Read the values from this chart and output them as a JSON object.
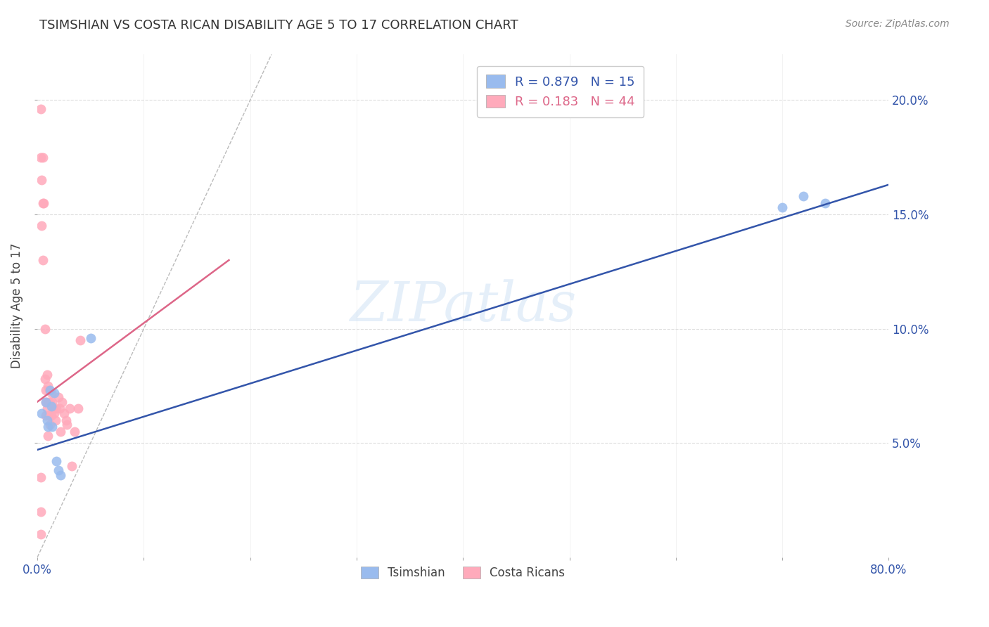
{
  "title": "TSIMSHIAN VS COSTA RICAN DISABILITY AGE 5 TO 17 CORRELATION CHART",
  "source": "Source: ZipAtlas.com",
  "ylabel": "Disability Age 5 to 17",
  "watermark": "ZIPatlas",
  "xlim": [
    0.0,
    0.8
  ],
  "ylim": [
    0.0,
    0.22
  ],
  "xticks": [
    0.0,
    0.1,
    0.2,
    0.3,
    0.4,
    0.5,
    0.6,
    0.7,
    0.8
  ],
  "yticks": [
    0.05,
    0.1,
    0.15,
    0.2
  ],
  "blue_R": 0.879,
  "blue_N": 15,
  "pink_R": 0.183,
  "pink_N": 44,
  "blue_color": "#99BBEE",
  "pink_color": "#FFAABB",
  "blue_line_color": "#3355AA",
  "pink_line_color": "#DD6688",
  "diag_color": "#BBBBBB",
  "background_color": "#FFFFFF",
  "blue_scatter_x": [
    0.004,
    0.008,
    0.009,
    0.01,
    0.012,
    0.013,
    0.014,
    0.016,
    0.018,
    0.02,
    0.022,
    0.05,
    0.7,
    0.72,
    0.74
  ],
  "blue_scatter_y": [
    0.063,
    0.068,
    0.06,
    0.057,
    0.073,
    0.066,
    0.057,
    0.072,
    0.042,
    0.038,
    0.036,
    0.096,
    0.153,
    0.158,
    0.155
  ],
  "pink_scatter_x": [
    0.003,
    0.003,
    0.004,
    0.004,
    0.005,
    0.005,
    0.005,
    0.006,
    0.007,
    0.007,
    0.008,
    0.008,
    0.008,
    0.009,
    0.009,
    0.01,
    0.01,
    0.01,
    0.011,
    0.011,
    0.012,
    0.012,
    0.013,
    0.013,
    0.014,
    0.015,
    0.016,
    0.017,
    0.018,
    0.02,
    0.021,
    0.022,
    0.023,
    0.025,
    0.027,
    0.028,
    0.03,
    0.032,
    0.035,
    0.038,
    0.04,
    0.003,
    0.003,
    0.003
  ],
  "pink_scatter_y": [
    0.196,
    0.175,
    0.165,
    0.145,
    0.175,
    0.155,
    0.13,
    0.155,
    0.1,
    0.078,
    0.073,
    0.068,
    0.062,
    0.08,
    0.065,
    0.075,
    0.068,
    0.053,
    0.073,
    0.062,
    0.068,
    0.058,
    0.072,
    0.062,
    0.068,
    0.065,
    0.063,
    0.06,
    0.065,
    0.07,
    0.065,
    0.055,
    0.068,
    0.063,
    0.06,
    0.058,
    0.065,
    0.04,
    0.055,
    0.065,
    0.095,
    0.035,
    0.02,
    0.01
  ],
  "blue_line_x": [
    0.0,
    0.8
  ],
  "blue_line_y": [
    0.047,
    0.163
  ],
  "pink_line_x": [
    0.0,
    0.18
  ],
  "pink_line_y": [
    0.068,
    0.13
  ]
}
